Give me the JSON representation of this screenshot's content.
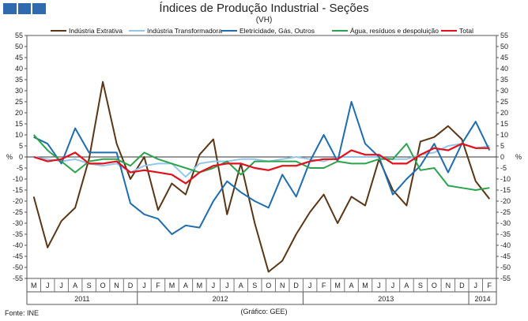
{
  "header": {
    "title": "Índices de Produção Industrial - Seções",
    "subtitle": "(VH)"
  },
  "footer": {
    "source": "Fonte: INE",
    "credit": "(Gráfico: GEE)"
  },
  "chart_data": {
    "type": "line",
    "title": "Índices de Produção Industrial - Seções",
    "subtitle": "(VH)",
    "ylabel_left": "%",
    "ylabel_right": "%",
    "ylim": [
      -55,
      55
    ],
    "ytick_step": 5,
    "grid": false,
    "legend_position": "top",
    "categories": [
      "M",
      "J",
      "J",
      "A",
      "S",
      "O",
      "N",
      "D",
      "J",
      "F",
      "M",
      "A",
      "M",
      "J",
      "J",
      "A",
      "S",
      "O",
      "N",
      "D",
      "J",
      "F",
      "M",
      "A",
      "M",
      "J",
      "J",
      "A",
      "S",
      "O",
      "N",
      "D",
      "J",
      "F"
    ],
    "year_groups": [
      {
        "label": "2011",
        "start": 0,
        "end": 7
      },
      {
        "label": "2012",
        "start": 8,
        "end": 19
      },
      {
        "label": "2013",
        "start": 20,
        "end": 31
      },
      {
        "label": "2014",
        "start": 32,
        "end": 33
      }
    ],
    "series": [
      {
        "name": "Indústria Extrativa",
        "color": "#5a3615",
        "values": [
          -18,
          -41,
          -29,
          -23,
          -1,
          34,
          6,
          -10,
          0,
          -24,
          -12,
          -17,
          1,
          8,
          -26,
          -3,
          -30,
          -52,
          -47,
          -35,
          -25,
          -17,
          -30,
          -18,
          -22,
          -1,
          -15,
          -22,
          7,
          9,
          14,
          8,
          -11,
          -19
        ]
      },
      {
        "name": "Indústria Transformadora",
        "color": "#93c6e8",
        "values": [
          0,
          -1,
          -2,
          -1,
          -3,
          -4,
          -3,
          -7,
          -4,
          -3,
          -3,
          -9,
          -3,
          -2,
          -2,
          -1,
          -1,
          -2,
          -1,
          0,
          -1,
          -2,
          0,
          0,
          0,
          0,
          -1,
          -1,
          1,
          2,
          5,
          6,
          4,
          5
        ]
      },
      {
        "name": "Eletricidade, Gás, Outros",
        "color": "#1f6cae",
        "values": [
          9,
          6,
          -3,
          13,
          2,
          2,
          2,
          -21,
          -26,
          -28,
          -35,
          -31,
          -32,
          -20,
          -11,
          -16,
          -20,
          -23,
          -8,
          -18,
          -2,
          10,
          -2,
          25,
          6,
          0,
          -17,
          -10,
          -4,
          6,
          -7,
          6,
          16,
          3
        ]
      },
      {
        "name": "Água, resíduos e despoluição",
        "color": "#2ba34c",
        "values": [
          10,
          3,
          -2,
          -7,
          -2,
          -1,
          -1,
          -4,
          2,
          -1,
          -3,
          -5,
          -7,
          -5,
          -2,
          -8,
          -2,
          -2,
          -2,
          -2,
          -5,
          -5,
          -2,
          -3,
          -3,
          -1,
          -1,
          6,
          -6,
          -5,
          -13,
          -14,
          -15,
          -14
        ]
      },
      {
        "name": "Total",
        "color": "#e3101c",
        "values": [
          0,
          -2,
          -1,
          2,
          -3,
          -3,
          -2,
          -7,
          -6,
          -7,
          -8,
          -12,
          -7,
          -4,
          -3,
          -3,
          -5,
          -6,
          -4,
          -4,
          -2,
          -1,
          -1,
          3,
          1,
          1,
          -3,
          -3,
          1,
          4,
          3,
          6,
          4,
          4
        ]
      }
    ]
  }
}
